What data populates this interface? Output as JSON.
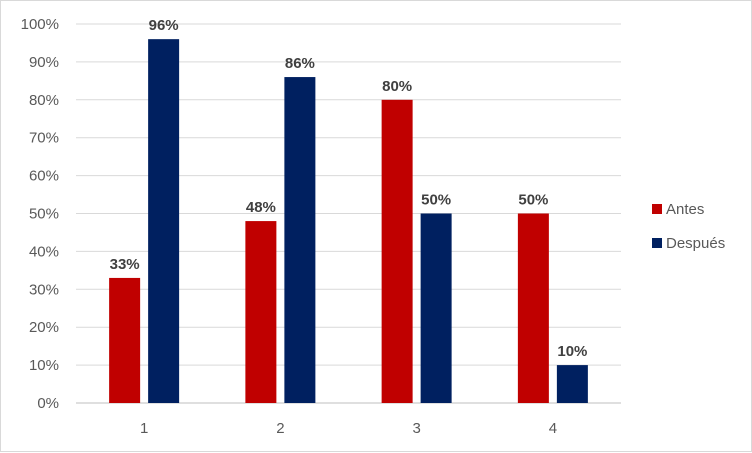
{
  "chart_data": {
    "type": "bar",
    "title": "",
    "xlabel": "",
    "ylabel": "",
    "categories": [
      "1",
      "2",
      "3",
      "4"
    ],
    "series": [
      {
        "name": "Antes",
        "color": "#C00000",
        "values": [
          33,
          48,
          80,
          50
        ]
      },
      {
        "name": "Después",
        "color": "#002060",
        "values": [
          96,
          86,
          50,
          10
        ]
      }
    ],
    "ylim": [
      0,
      100
    ],
    "y_ticks": [
      "0%",
      "10%",
      "20%",
      "30%",
      "40%",
      "50%",
      "60%",
      "70%",
      "80%",
      "90%",
      "100%"
    ],
    "data_labels": [
      [
        "33%",
        "48%",
        "80%",
        "50%"
      ],
      [
        "96%",
        "86%",
        "50%",
        "10%"
      ]
    ],
    "grid": true,
    "legend": "right"
  }
}
